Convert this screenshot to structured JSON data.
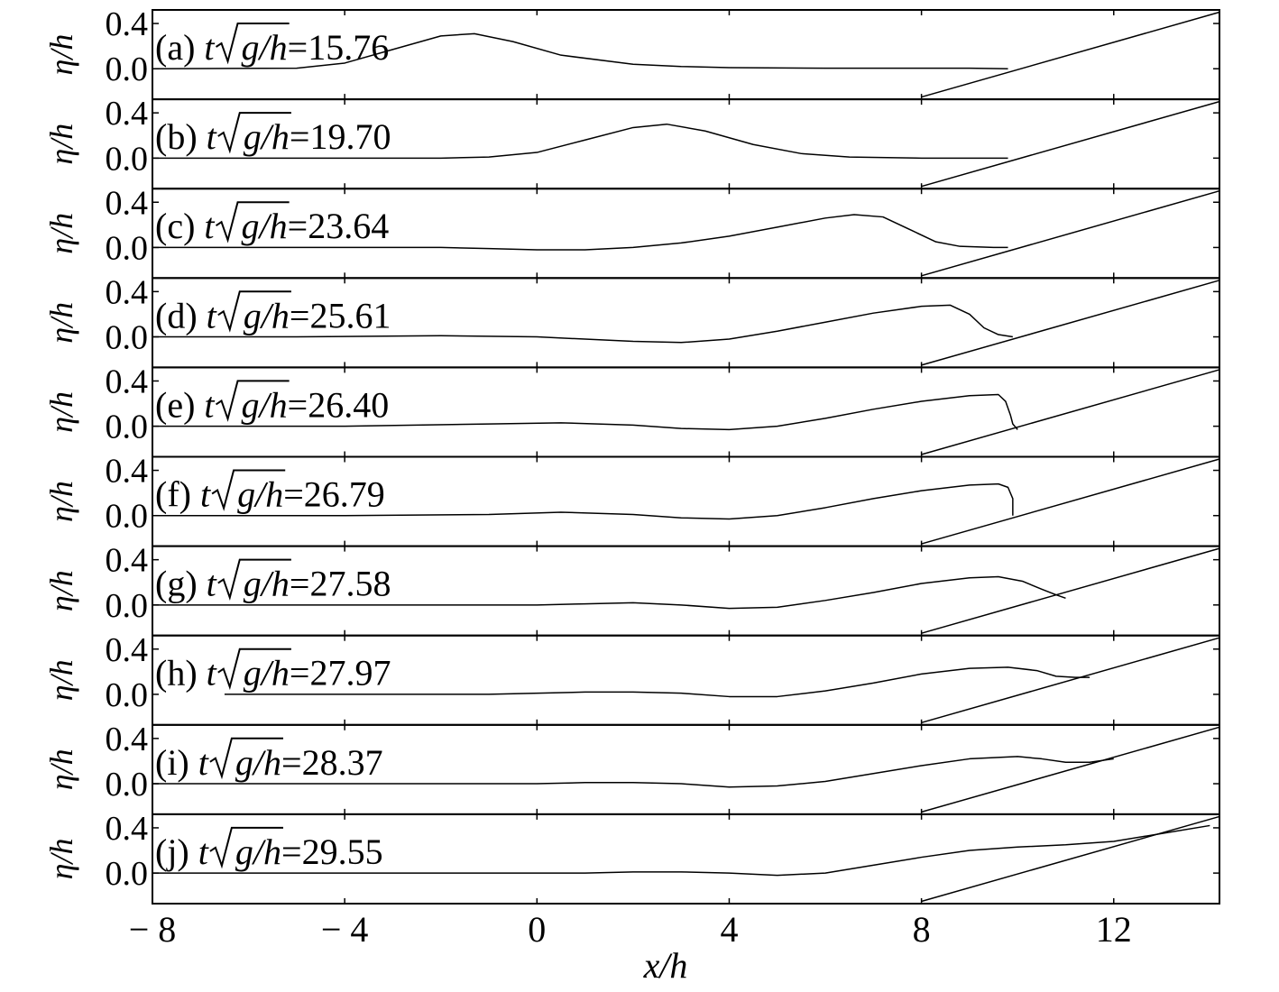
{
  "figure": {
    "x_axis_label": "x/h",
    "y_axis_label": "η/h"
  },
  "chart_data": {
    "type": "line",
    "xlabel": "x/h",
    "ylabel": "η/h",
    "xlim": [
      -8,
      14.2
    ],
    "ylim": [
      -0.27,
      0.52
    ],
    "x_ticks": [
      -8,
      -4,
      0,
      4,
      8,
      12
    ],
    "x_tick_labels": [
      "− 8",
      "− 4",
      "0",
      "4",
      "8",
      "12"
    ],
    "y_ticks": [
      0.0,
      0.4
    ],
    "y_tick_labels": [
      "0.0",
      "0.4"
    ],
    "grid": false,
    "beach_slope": {
      "x": [
        8.0,
        14.2
      ],
      "y": [
        -0.25,
        0.5
      ]
    },
    "panels": [
      {
        "label": "(a) ",
        "t_var": "t",
        "radicand": "g/h",
        "t_value": "=15.76",
        "x": [
          -8,
          -5,
          -4,
          -3,
          -2,
          -1.3,
          -0.5,
          0.5,
          2,
          3,
          4,
          6,
          8,
          9,
          9.8
        ],
        "y": [
          0,
          0.005,
          0.05,
          0.17,
          0.29,
          0.31,
          0.24,
          0.12,
          0.04,
          0.02,
          0.01,
          0.005,
          0.005,
          0.005,
          0
        ]
      },
      {
        "label": "(b) ",
        "t_var": "t",
        "radicand": "g/h",
        "t_value": "=19.70",
        "x": [
          -8,
          -2,
          -1,
          0,
          1,
          2,
          2.7,
          3.5,
          4.5,
          5.5,
          6.5,
          8,
          9,
          9.8
        ],
        "y": [
          0,
          0,
          0.01,
          0.05,
          0.16,
          0.27,
          0.3,
          0.24,
          0.12,
          0.04,
          0.01,
          0,
          0,
          0
        ]
      },
      {
        "label": "(c) ",
        "t_var": "t",
        "radicand": "g/h",
        "t_value": "=23.64",
        "x": [
          -8,
          -4,
          -2,
          -1,
          0,
          1,
          2,
          3,
          4,
          5,
          6,
          6.6,
          7.2,
          7.8,
          8.3,
          8.8,
          9.5,
          9.8
        ],
        "y": [
          0,
          0,
          0,
          -0.01,
          -0.02,
          -0.02,
          0,
          0.04,
          0.1,
          0.18,
          0.26,
          0.29,
          0.27,
          0.15,
          0.05,
          0.01,
          0,
          0
        ]
      },
      {
        "label": "(d) ",
        "t_var": "t",
        "radicand": "g/h",
        "t_value": "=25.61",
        "x": [
          -8,
          -5,
          -2,
          0,
          1,
          2,
          3,
          4,
          5,
          6,
          7,
          8,
          8.6,
          9,
          9.3,
          9.6,
          9.9
        ],
        "y": [
          0,
          0,
          0.01,
          0,
          -0.02,
          -0.04,
          -0.05,
          -0.02,
          0.05,
          0.13,
          0.21,
          0.27,
          0.28,
          0.2,
          0.08,
          0.02,
          0
        ]
      },
      {
        "label": "(e) ",
        "t_var": "t",
        "radicand": "g/h",
        "t_value": "=26.40",
        "x": [
          -8,
          -4,
          -1,
          0.5,
          2,
          3,
          4,
          5,
          6,
          7,
          8,
          9,
          9.6,
          9.75,
          9.85,
          9.9,
          10
        ],
        "y": [
          0,
          0,
          0.02,
          0.03,
          0.01,
          -0.02,
          -0.03,
          0,
          0.07,
          0.15,
          0.22,
          0.27,
          0.28,
          0.22,
          0.1,
          0.02,
          -0.03
        ]
      },
      {
        "label": "(f) ",
        "t_var": "t",
        "radicand": "g/h",
        "t_value": "=26.79",
        "x": [
          -8,
          -4,
          -1,
          0.5,
          2,
          3,
          4,
          5,
          6,
          7,
          8,
          9,
          9.6,
          9.8,
          9.9,
          9.9
        ],
        "y": [
          0,
          0,
          0.01,
          0.03,
          0.01,
          -0.02,
          -0.03,
          0,
          0.07,
          0.15,
          0.22,
          0.27,
          0.28,
          0.25,
          0.15,
          0
        ]
      },
      {
        "label": "(g) ",
        "t_var": "t",
        "radicand": "g/h",
        "t_value": "=27.58",
        "x": [
          -8,
          -4,
          0,
          1,
          2,
          3,
          4,
          5,
          6,
          7,
          8,
          9,
          9.6,
          10.1,
          10.5,
          10.8,
          11
        ],
        "y": [
          0,
          0,
          0,
          0.01,
          0.02,
          0,
          -0.03,
          -0.02,
          0.04,
          0.11,
          0.19,
          0.24,
          0.25,
          0.21,
          0.14,
          0.09,
          0.06
        ]
      },
      {
        "label": "(h) ",
        "t_var": "t",
        "radicand": "g/h",
        "t_value": "=27.97",
        "x": [
          -6.5,
          -4,
          -1,
          1,
          2,
          3,
          4,
          5,
          6,
          7,
          8,
          9,
          9.8,
          10.4,
          10.8,
          11.2,
          11.5
        ],
        "y": [
          0,
          0,
          0,
          0.02,
          0.02,
          0.01,
          -0.02,
          -0.02,
          0.03,
          0.1,
          0.18,
          0.23,
          0.24,
          0.21,
          0.16,
          0.15,
          0.15
        ]
      },
      {
        "label": "(i) ",
        "t_var": "t",
        "radicand": "g/h",
        "t_value": "=28.37",
        "x": [
          -8,
          -4,
          0,
          1,
          2,
          3,
          4,
          5,
          6,
          7,
          8,
          9,
          10,
          10.5,
          11,
          11.5,
          12
        ],
        "y": [
          0,
          0,
          0,
          0.01,
          0.01,
          0,
          -0.03,
          -0.02,
          0.02,
          0.09,
          0.16,
          0.22,
          0.24,
          0.22,
          0.19,
          0.19,
          0.22
        ]
      },
      {
        "label": "(j) ",
        "t_var": "t",
        "radicand": "g/h",
        "t_value": "=29.55",
        "x": [
          -8,
          -4,
          0,
          1,
          2,
          3,
          4,
          5,
          6,
          7,
          8,
          9,
          10,
          11,
          12,
          13,
          14
        ],
        "y": [
          0,
          0,
          0,
          0,
          0.01,
          0.01,
          0,
          -0.02,
          0,
          0.07,
          0.14,
          0.2,
          0.23,
          0.25,
          0.28,
          0.35,
          0.42
        ]
      }
    ]
  }
}
